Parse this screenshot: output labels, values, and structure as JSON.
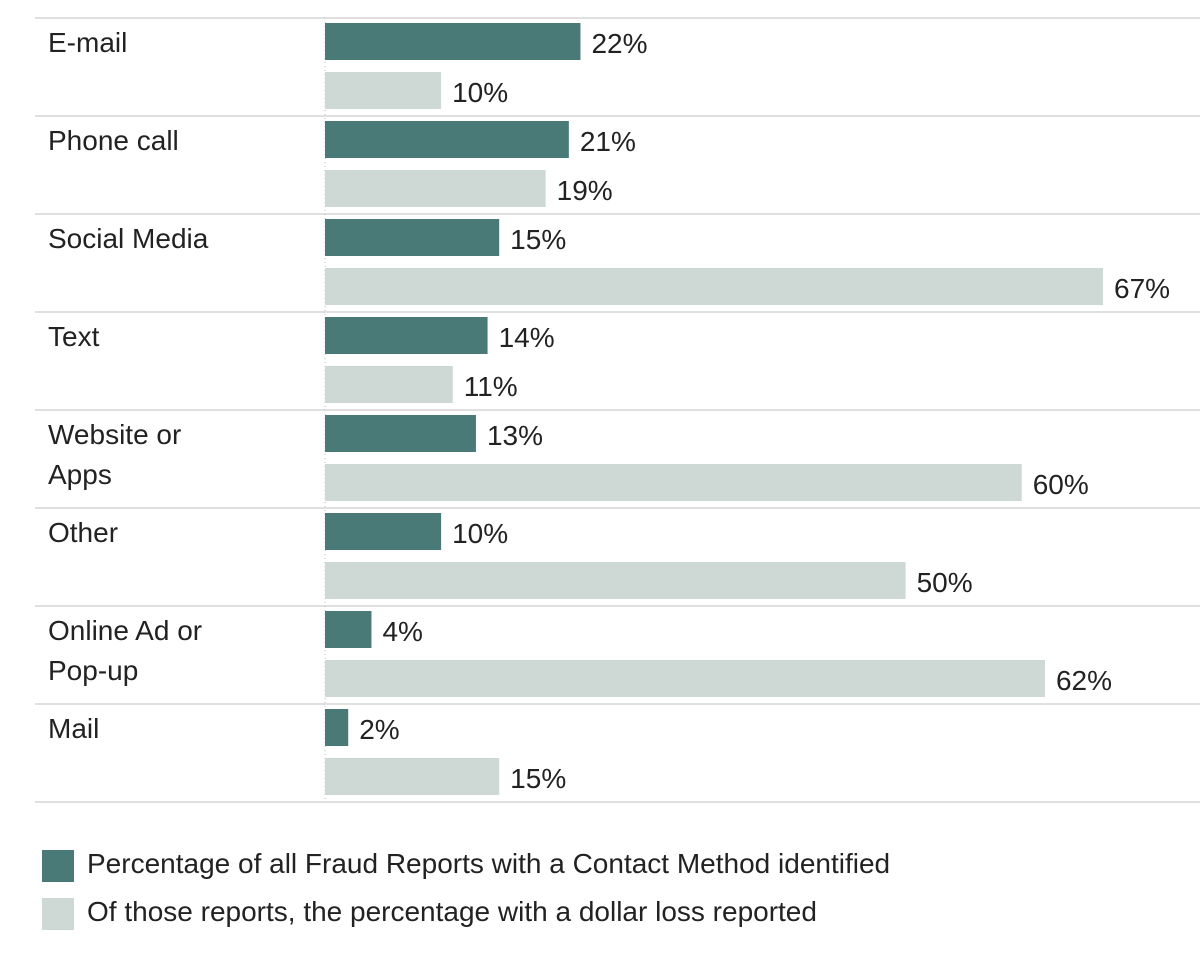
{
  "chart_data": {
    "type": "bar",
    "orientation": "horizontal",
    "categories": [
      "E-mail",
      "Phone call",
      "Social Media",
      "Text",
      "Website or Apps",
      "Other",
      "Online Ad or Pop-up",
      "Mail"
    ],
    "category_lines": [
      [
        "E-mail"
      ],
      [
        "Phone call"
      ],
      [
        "Social Media"
      ],
      [
        "Text"
      ],
      [
        "Website or",
        "Apps"
      ],
      [
        "Other"
      ],
      [
        "Online Ad or",
        "Pop-up"
      ],
      [
        "Mail"
      ]
    ],
    "series": [
      {
        "name": "Percentage of all Fraud Reports with a Contact Method identified",
        "color": "#4a7a78",
        "values": [
          22,
          21,
          15,
          14,
          13,
          10,
          4,
          2
        ]
      },
      {
        "name": "Of those reports, the percentage with a dollar loss reported",
        "color": "#ced9d6",
        "values": [
          10,
          19,
          67,
          11,
          60,
          50,
          62,
          15
        ]
      }
    ],
    "value_suffix": "%",
    "xlim": [
      0,
      67
    ],
    "grid": false,
    "legend_position": "bottom-left"
  }
}
